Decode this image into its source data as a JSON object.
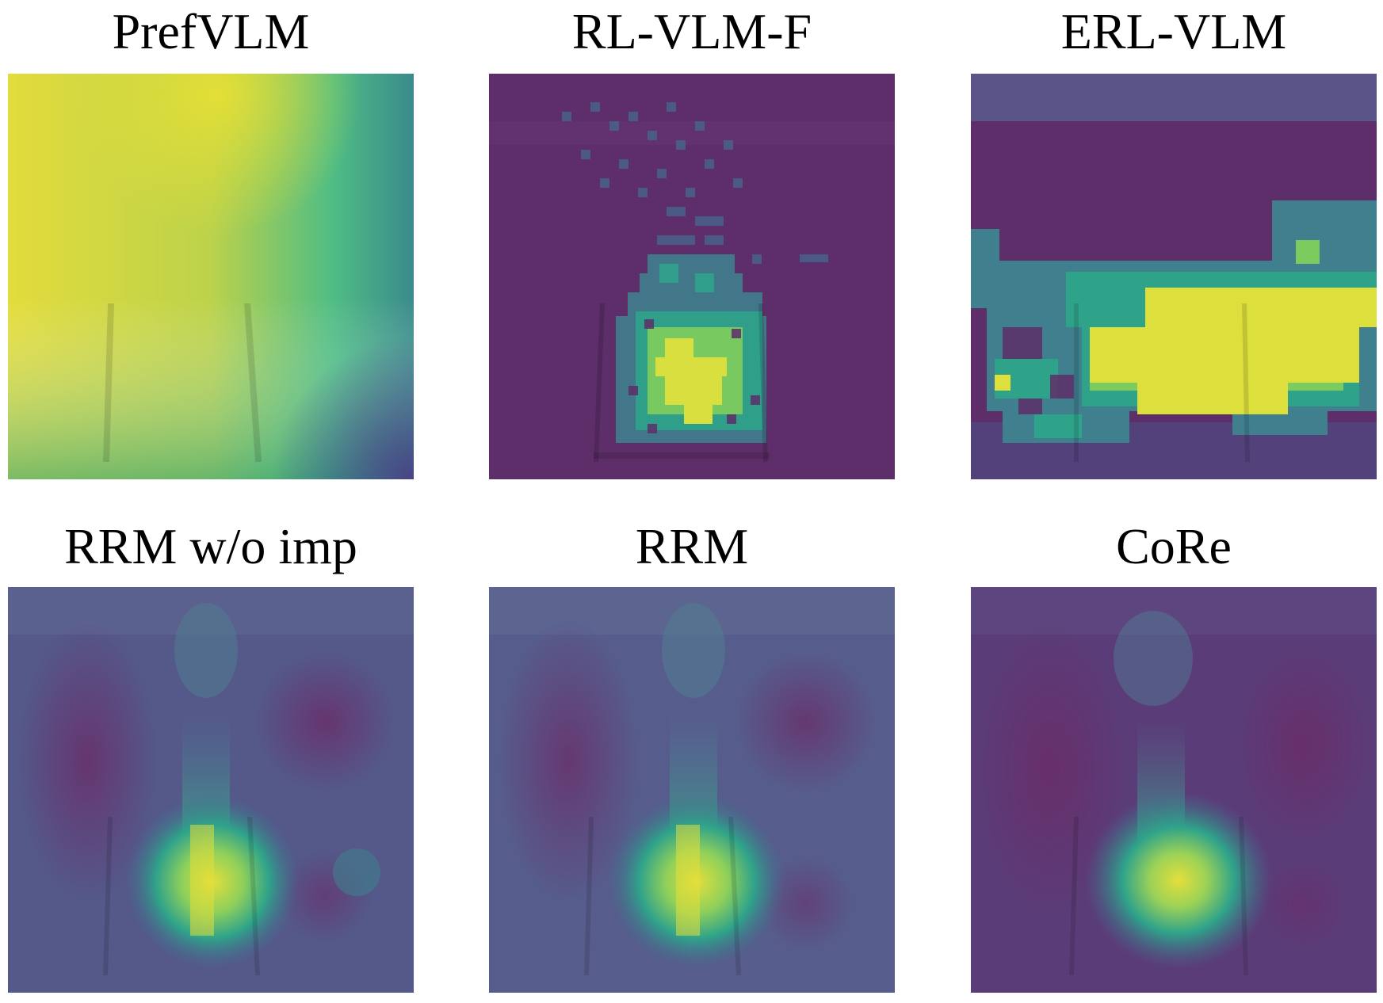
{
  "figure": {
    "panels": [
      {
        "id": "prefvlm",
        "title": "PrefVLM"
      },
      {
        "id": "rl-vlm-f",
        "title": "RL-VLM-F"
      },
      {
        "id": "erl-vlm",
        "title": "ERL-VLM"
      },
      {
        "id": "rrm-wo-imp",
        "title": "RRM w/o imp"
      },
      {
        "id": "rrm",
        "title": "RRM"
      },
      {
        "id": "core",
        "title": "CoRe"
      }
    ],
    "colormap": {
      "low": "#5b2a6b",
      "mid_low": "#4f6a8f",
      "mid": "#3aa58a",
      "mid_high": "#9bd15a",
      "high": "#e3e03a"
    }
  }
}
